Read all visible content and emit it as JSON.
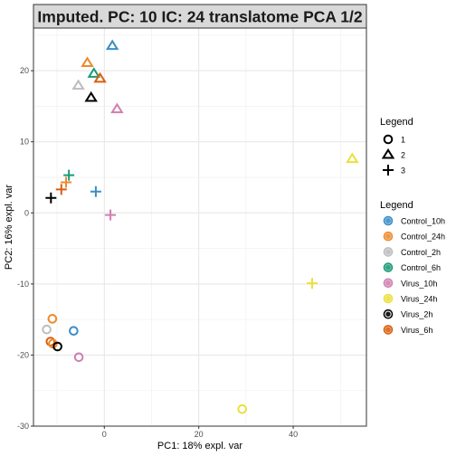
{
  "chart_data": {
    "type": "scatter",
    "title": "Imputed. PC: 10 IC: 24 translatome PCA 1/2",
    "xlabel": "PC1: 18% expl. var",
    "ylabel": "PC2: 16% expl. var",
    "xlim": [
      -15,
      55.5
    ],
    "ylim": [
      -30,
      26
    ],
    "x_ticks": [
      0,
      20,
      40
    ],
    "y_ticks": [
      -30,
      -20,
      -10,
      0,
      10,
      20
    ],
    "grid": true,
    "legend_position": "right",
    "shape_legend": {
      "title": "Legend",
      "items": [
        {
          "label": "1",
          "shape": "circle"
        },
        {
          "label": "2",
          "shape": "triangle"
        },
        {
          "label": "3",
          "shape": "plus"
        }
      ]
    },
    "color_legend": {
      "title": "Legend",
      "items": [
        {
          "label": "Control_10h",
          "color": "#3a8fc8"
        },
        {
          "label": "Control_24h",
          "color": "#ee8a2e"
        },
        {
          "label": "Control_2h",
          "color": "#bdbdbd"
        },
        {
          "label": "Control_6h",
          "color": "#1a9a78"
        },
        {
          "label": "Virus_10h",
          "color": "#d07fb0"
        },
        {
          "label": "Virus_24h",
          "color": "#ebe03a"
        },
        {
          "label": "Virus_2h",
          "color": "#000000"
        },
        {
          "label": "Virus_6h",
          "color": "#d95f0e"
        }
      ]
    },
    "points": [
      {
        "x": 1.7,
        "y": 23.5,
        "group": "Control_10h",
        "shape": "triangle"
      },
      {
        "x": -3.6,
        "y": 21.1,
        "group": "Control_24h",
        "shape": "triangle"
      },
      {
        "x": -5.5,
        "y": 17.9,
        "group": "Control_2h",
        "shape": "triangle"
      },
      {
        "x": -2.2,
        "y": 19.6,
        "group": "Control_6h",
        "shape": "triangle"
      },
      {
        "x": -0.9,
        "y": 18.9,
        "group": "Virus_6h",
        "shape": "triangle"
      },
      {
        "x": -2.8,
        "y": 16.2,
        "group": "Virus_2h",
        "shape": "triangle"
      },
      {
        "x": 2.7,
        "y": 14.6,
        "group": "Virus_10h",
        "shape": "triangle"
      },
      {
        "x": 52.5,
        "y": 7.6,
        "group": "Virus_24h",
        "shape": "triangle"
      },
      {
        "x": -7.5,
        "y": 5.3,
        "group": "Control_6h",
        "shape": "plus"
      },
      {
        "x": -8.1,
        "y": 4.3,
        "group": "Control_24h",
        "shape": "plus"
      },
      {
        "x": -9.1,
        "y": 3.3,
        "group": "Virus_6h",
        "shape": "plus"
      },
      {
        "x": -11.3,
        "y": 2.1,
        "group": "Virus_2h",
        "shape": "plus"
      },
      {
        "x": -1.8,
        "y": 3.0,
        "group": "Control_10h",
        "shape": "plus"
      },
      {
        "x": 1.3,
        "y": -0.3,
        "group": "Virus_10h",
        "shape": "plus"
      },
      {
        "x": 44.0,
        "y": -9.9,
        "group": "Virus_24h",
        "shape": "plus"
      },
      {
        "x": -11.0,
        "y": -14.9,
        "group": "Control_24h",
        "shape": "circle"
      },
      {
        "x": -12.2,
        "y": -16.4,
        "group": "Control_2h",
        "shape": "circle"
      },
      {
        "x": -6.5,
        "y": -16.6,
        "group": "Control_10h",
        "shape": "circle"
      },
      {
        "x": -11.4,
        "y": -18.1,
        "group": "Virus_6h",
        "shape": "circle"
      },
      {
        "x": -10.9,
        "y": -18.4,
        "group": "Control_24h",
        "shape": "circle"
      },
      {
        "x": -9.9,
        "y": -18.8,
        "group": "Virus_2h",
        "shape": "circle"
      },
      {
        "x": -5.4,
        "y": -20.3,
        "group": "Virus_10h",
        "shape": "circle"
      },
      {
        "x": 29.2,
        "y": -27.6,
        "group": "Virus_24h",
        "shape": "circle"
      }
    ]
  }
}
